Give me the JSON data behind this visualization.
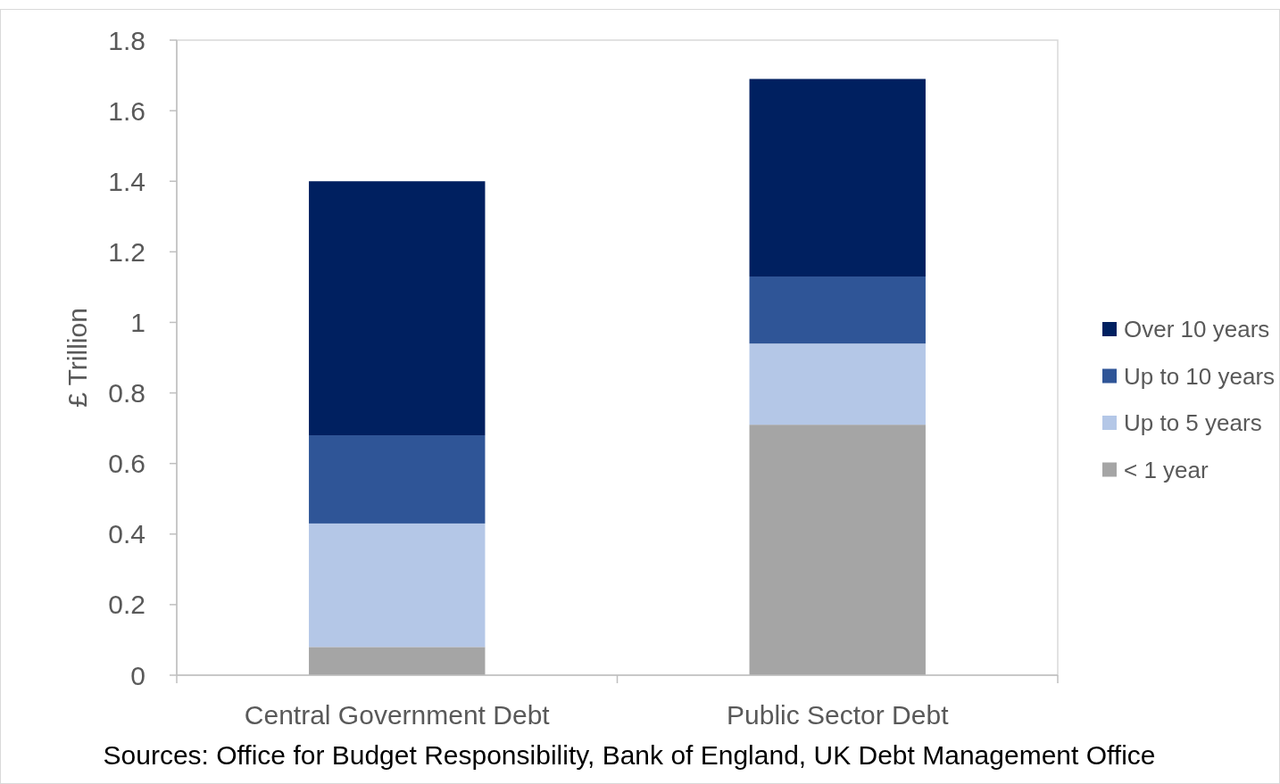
{
  "chart_data": {
    "type": "bar",
    "stacked": true,
    "ylabel": "£ Trillion",
    "categories": [
      "Central Government Debt",
      "Public Sector Debt"
    ],
    "series": [
      {
        "name": "< 1 year",
        "color": "#a5a5a5",
        "values": [
          0.08,
          0.71
        ]
      },
      {
        "name": "Up to 5 years",
        "color": "#b4c7e7",
        "values": [
          0.35,
          0.23
        ]
      },
      {
        "name": "Up to 10 years",
        "color": "#2f5597",
        "values": [
          0.25,
          0.19
        ]
      },
      {
        "name": "Over 10 years",
        "color": "#002060",
        "values": [
          0.72,
          0.56
        ]
      }
    ],
    "ylim": [
      0,
      1.8
    ],
    "yticks": [
      0,
      0.2,
      0.4,
      0.6,
      0.8,
      1,
      1.2,
      1.4,
      1.6,
      1.8
    ],
    "legend": "right",
    "annotations": [
      "Sources: Office for Budget Responsibility, Bank of England, UK Debt Management Office"
    ]
  }
}
